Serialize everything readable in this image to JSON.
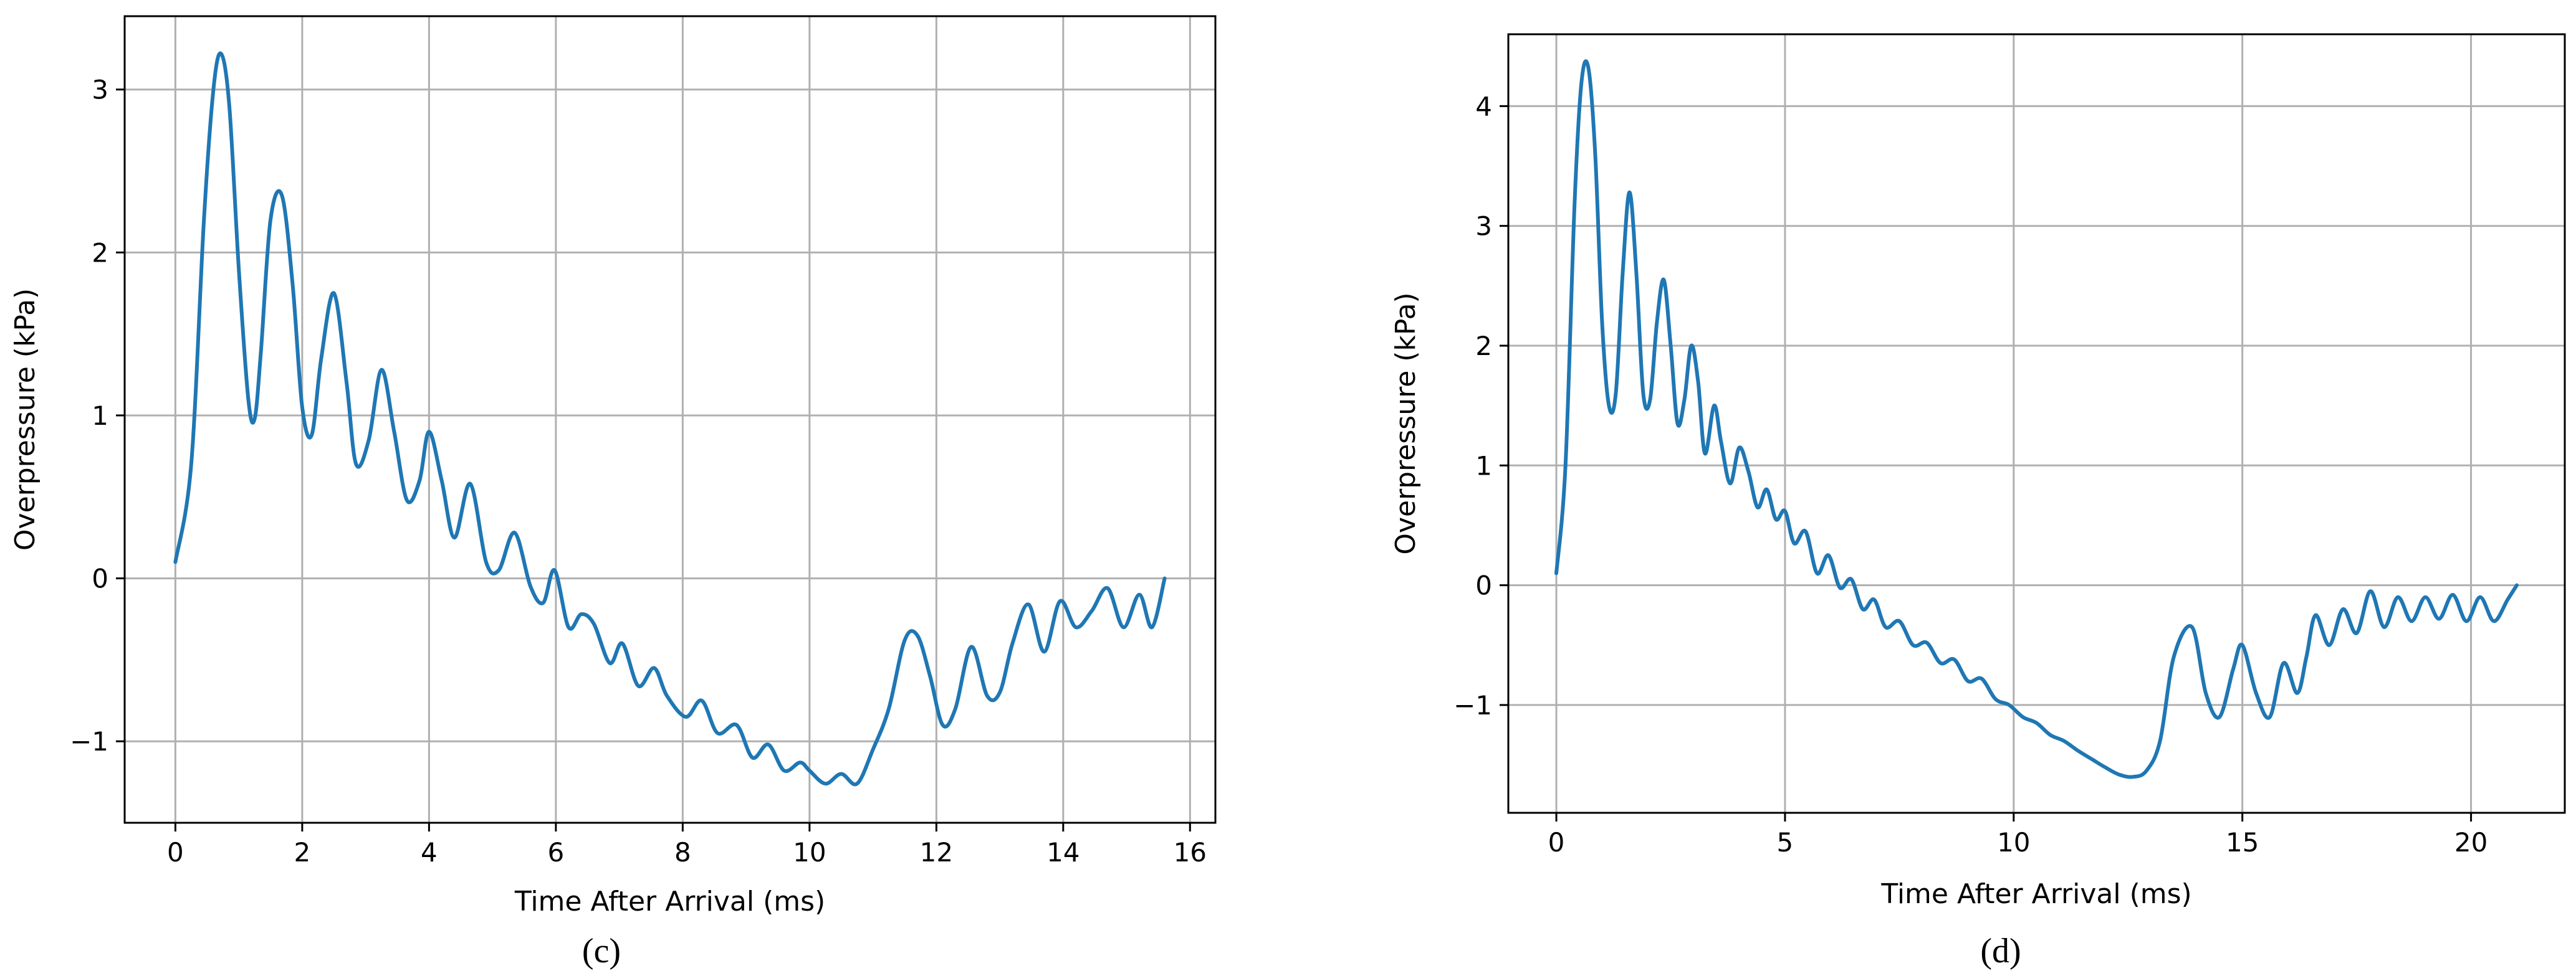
{
  "chart_data": [
    {
      "type": "line",
      "panel_label": "(c)",
      "xlabel": "Time After Arrival (ms)",
      "ylabel": "Overpressure (kPa)",
      "xlim": [
        -0.8,
        16.4
      ],
      "ylim": [
        -1.5,
        3.45
      ],
      "xticks": [
        0,
        2,
        4,
        6,
        8,
        10,
        12,
        14,
        16
      ],
      "yticks": [
        -1,
        0,
        1,
        2,
        3
      ],
      "xtick_labels": [
        "0",
        "2",
        "4",
        "6",
        "8",
        "10",
        "12",
        "14",
        "16"
      ],
      "ytick_labels": [
        "−1",
        "0",
        "1",
        "2",
        "3"
      ],
      "grid": true,
      "color": "#1f77b4",
      "series": [
        {
          "x": [
            0.0,
            0.25,
            0.45,
            0.6,
            0.72,
            0.85,
            1.0,
            1.15,
            1.25,
            1.35,
            1.5,
            1.68,
            1.85,
            2.0,
            2.15,
            2.3,
            2.5,
            2.7,
            2.85,
            3.05,
            3.25,
            3.45,
            3.65,
            3.85,
            4.0,
            4.2,
            4.4,
            4.65,
            4.9,
            5.1,
            5.35,
            5.6,
            5.8,
            5.98,
            6.2,
            6.4,
            6.6,
            6.85,
            7.05,
            7.3,
            7.55,
            7.75,
            8.05,
            8.3,
            8.55,
            8.85,
            9.1,
            9.35,
            9.6,
            9.85,
            10.0,
            10.25,
            10.5,
            10.75,
            11.0,
            11.25,
            11.5,
            11.7,
            11.9,
            12.1,
            12.3,
            12.55,
            12.8,
            13.0,
            13.2,
            13.45,
            13.7,
            13.95,
            14.2,
            14.45,
            14.7,
            14.95,
            15.2,
            15.4,
            15.6
          ],
          "y": [
            0.1,
            0.7,
            2.2,
            3.0,
            3.22,
            2.9,
            1.9,
            1.1,
            0.98,
            1.4,
            2.2,
            2.35,
            1.8,
            1.05,
            0.88,
            1.35,
            1.75,
            1.2,
            0.7,
            0.85,
            1.28,
            0.9,
            0.48,
            0.6,
            0.9,
            0.6,
            0.25,
            0.58,
            0.1,
            0.05,
            0.28,
            -0.05,
            -0.15,
            0.05,
            -0.3,
            -0.22,
            -0.28,
            -0.52,
            -0.4,
            -0.66,
            -0.55,
            -0.72,
            -0.85,
            -0.75,
            -0.95,
            -0.9,
            -1.1,
            -1.02,
            -1.18,
            -1.13,
            -1.18,
            -1.26,
            -1.2,
            -1.26,
            -1.05,
            -0.8,
            -0.38,
            -0.35,
            -0.6,
            -0.9,
            -0.8,
            -0.42,
            -0.72,
            -0.7,
            -0.4,
            -0.16,
            -0.45,
            -0.14,
            -0.3,
            -0.2,
            -0.06,
            -0.3,
            -0.1,
            -0.3,
            0.0
          ]
        }
      ]
    },
    {
      "type": "line",
      "panel_label": "(d)",
      "xlabel": "Time After Arrival (ms)",
      "ylabel": "Overpressure (kPa)",
      "xlim": [
        -1.05,
        22.05
      ],
      "ylim": [
        -1.9,
        4.6
      ],
      "xticks": [
        0,
        5,
        10,
        15,
        20
      ],
      "yticks": [
        -1,
        0,
        1,
        2,
        3,
        4
      ],
      "xtick_labels": [
        "0",
        "5",
        "10",
        "15",
        "20"
      ],
      "ytick_labels": [
        "−1",
        "0",
        "1",
        "2",
        "3",
        "4"
      ],
      "grid": true,
      "color": "#1f77b4",
      "series": [
        {
          "x": [
            0.0,
            0.2,
            0.4,
            0.55,
            0.7,
            0.85,
            1.0,
            1.15,
            1.3,
            1.45,
            1.6,
            1.75,
            1.9,
            2.05,
            2.2,
            2.35,
            2.5,
            2.65,
            2.8,
            2.95,
            3.1,
            3.25,
            3.45,
            3.6,
            3.8,
            4.0,
            4.2,
            4.4,
            4.6,
            4.8,
            5.0,
            5.2,
            5.45,
            5.7,
            5.95,
            6.2,
            6.45,
            6.7,
            6.95,
            7.2,
            7.5,
            7.8,
            8.1,
            8.4,
            8.7,
            9.0,
            9.3,
            9.6,
            9.9,
            10.2,
            10.5,
            10.8,
            11.1,
            11.4,
            11.7,
            12.0,
            12.3,
            12.6,
            12.9,
            13.2,
            13.5,
            13.9,
            14.2,
            14.5,
            14.8,
            15.0,
            15.3,
            15.6,
            15.9,
            16.2,
            16.4,
            16.6,
            16.9,
            17.2,
            17.5,
            17.8,
            18.1,
            18.4,
            18.7,
            19.0,
            19.3,
            19.6,
            19.9,
            20.2,
            20.5,
            20.8,
            21.0
          ],
          "y": [
            0.1,
            1.0,
            3.2,
            4.2,
            4.32,
            3.6,
            2.2,
            1.5,
            1.6,
            2.6,
            3.28,
            2.6,
            1.6,
            1.55,
            2.2,
            2.55,
            2.0,
            1.35,
            1.55,
            2.0,
            1.7,
            1.1,
            1.5,
            1.2,
            0.85,
            1.15,
            0.95,
            0.65,
            0.8,
            0.55,
            0.62,
            0.35,
            0.45,
            0.1,
            0.25,
            -0.02,
            0.05,
            -0.2,
            -0.12,
            -0.35,
            -0.3,
            -0.5,
            -0.48,
            -0.65,
            -0.62,
            -0.8,
            -0.78,
            -0.95,
            -1.0,
            -1.1,
            -1.15,
            -1.25,
            -1.3,
            -1.38,
            -1.45,
            -1.52,
            -1.58,
            -1.6,
            -1.55,
            -1.3,
            -0.6,
            -0.35,
            -0.9,
            -1.1,
            -0.7,
            -0.5,
            -0.9,
            -1.1,
            -0.65,
            -0.9,
            -0.6,
            -0.25,
            -0.5,
            -0.2,
            -0.4,
            -0.05,
            -0.35,
            -0.1,
            -0.3,
            -0.1,
            -0.28,
            -0.08,
            -0.3,
            -0.1,
            -0.3,
            -0.12,
            0.0
          ]
        }
      ]
    }
  ]
}
